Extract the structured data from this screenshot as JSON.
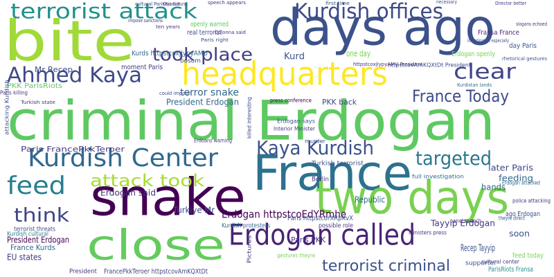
{
  "words": [
    "criminal Erdogan",
    "bite",
    "days ago",
    "headquarters",
    "France",
    "snake",
    "two days",
    "close",
    "Erdogan called",
    "terrorist attack",
    "Kurdish offices",
    "Ahmed Kaya",
    "took place",
    "clear",
    "Kurdish Center",
    "Kaya Kurdish",
    "targeted",
    "France Today",
    "feed",
    "attack took",
    "think",
    "terrorist criminal",
    "Erdogan httpstcoEdYRmhe",
    "Erdogan said",
    "Turkiye Mr",
    "Tayyip Erdogan",
    "Recep Tayyip",
    "terror snake",
    "President Erdogan",
    "Mr Recep",
    "Kurd",
    "one day",
    "Paris FrancePkkTeroer",
    "PKK back",
    "Republic",
    "later Paris",
    "hands",
    "feeding",
    "soon",
    "EU states",
    "President Erdogan",
    "France Kurds",
    "Paris PKK",
    "PKK ParisRiots",
    "Paris killing",
    "moment Paris",
    "Kurds httpstcoxjIypyAMU",
    "openly warned",
    "real terrorist",
    "Erdogan openly",
    "day Paris",
    "Fransa France",
    "Paris httpstcorXRpKvX",
    "possible role",
    "terrorist threats",
    "Kurdish cultural",
    "FrancePkkTeroer httpstcovAmKQXtDt",
    "President",
    "ParisRiots Fransa",
    "feed today",
    "ago Erdogan",
    "Erdogan attacked",
    "Berlin",
    "Kurdish protesters",
    "Interior Minister",
    "Erdoans warning",
    "Turkish terrorist",
    "supporter",
    "panel speech",
    "police attacking",
    "theyre direct",
    "cultural center",
    "full investigation",
    "gestures theyre",
    "Ministers press",
    "attacking Kurdish",
    "bosom",
    "Erdogan says",
    "murder",
    "Kurdistan lands",
    "press conference",
    "Paris right",
    "Colonna said",
    "speech appears",
    "cultural ParisFrance",
    "Kaya Cultural",
    "first time",
    "necessary",
    "Director better",
    "slogans echoed",
    "investigation especially",
    "rhetorical gestures",
    "httpstcovAmKQXtDt President",
    "httpstcoxjIypyAMU President",
    "Turkish state",
    "could impose",
    "ten years",
    "impose sanctions",
    "Pictures",
    "killed interesting"
  ]
}
